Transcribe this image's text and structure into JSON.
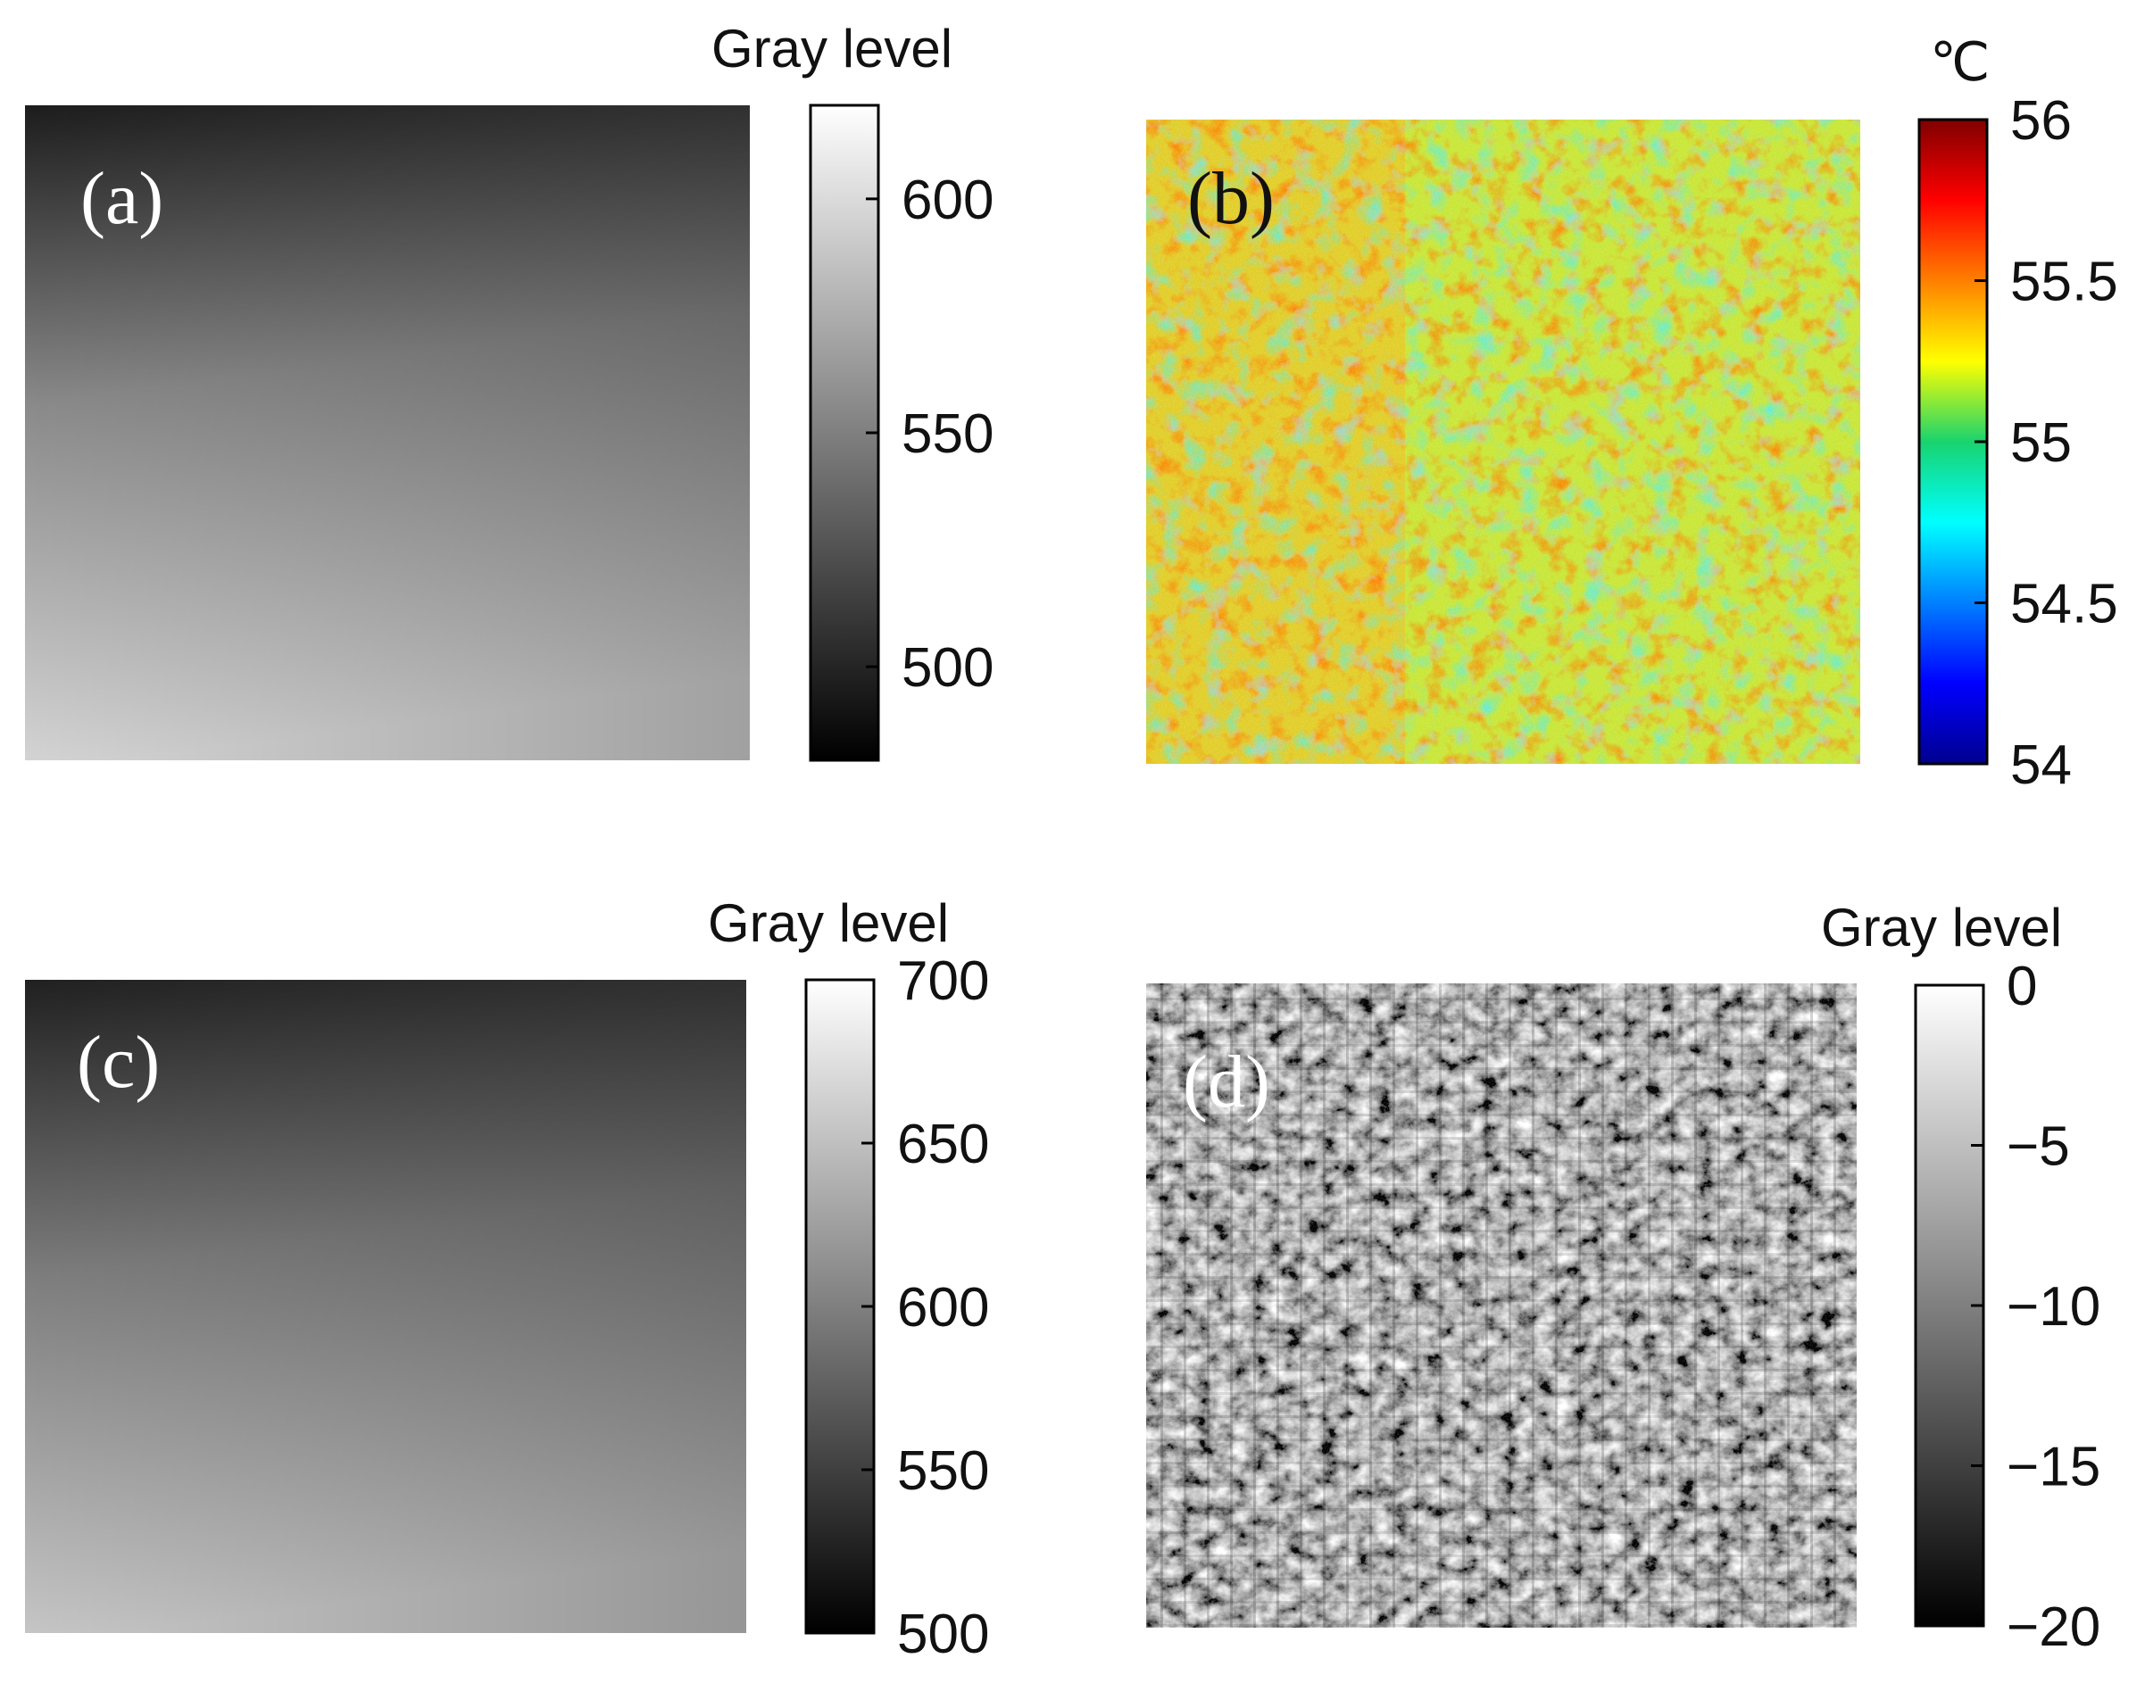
{
  "figure": {
    "panels": [
      {
        "id": "a",
        "label": "(a)",
        "kind": "grayscale-gradient",
        "shade_top": "#1c1c1c",
        "shade_bottom": "#d6d6d6",
        "colorbar": {
          "title": "Gray level",
          "ticks": [
            "600",
            "550",
            "500"
          ],
          "tick_values": [
            600,
            550,
            500
          ],
          "range": [
            480,
            620
          ],
          "colormap": "gray"
        }
      },
      {
        "id": "b",
        "label": "(b)",
        "kind": "thermal-map",
        "colorbar": {
          "title": "℃",
          "ticks": [
            "56",
            "55.5",
            "55",
            "54.5",
            "54"
          ],
          "tick_values": [
            56,
            55.5,
            55,
            54.5,
            54
          ],
          "range": [
            54,
            56
          ],
          "colormap": "jet"
        }
      },
      {
        "id": "c",
        "label": "(c)",
        "kind": "grayscale-gradient",
        "shade_top": "#202020",
        "shade_bottom": "#c8c8c8",
        "colorbar": {
          "title": "Gray level",
          "ticks": [
            "700",
            "650",
            "600",
            "550",
            "500"
          ],
          "tick_values": [
            700,
            650,
            600,
            550,
            500
          ],
          "range": [
            500,
            700
          ],
          "colormap": "gray"
        }
      },
      {
        "id": "d",
        "label": "(d)",
        "kind": "noise-texture",
        "colorbar": {
          "title": "Gray level",
          "ticks": [
            "0",
            "−5",
            "−10",
            "−15",
            "−20"
          ],
          "tick_values": [
            0,
            -5,
            -10,
            -15,
            -20
          ],
          "range": [
            -20,
            0
          ],
          "colormap": "gray"
        }
      }
    ]
  }
}
